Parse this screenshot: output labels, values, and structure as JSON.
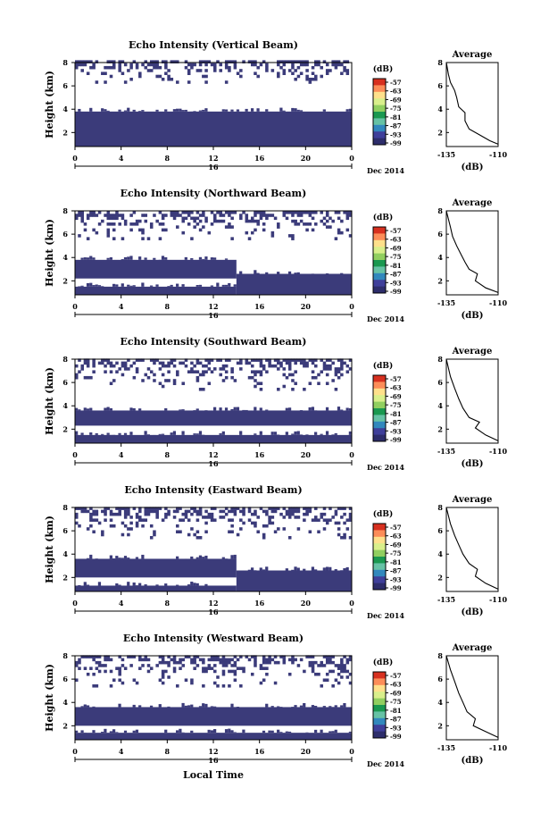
{
  "figure": {
    "xlabel": "Local Time",
    "date_label": "Dec 2014",
    "day_label": "16",
    "colorbar_unit": "(dB)",
    "colorbar_ticks": [
      "-57",
      "-63",
      "-69",
      "-75",
      "-81",
      "-87",
      "-93",
      "-99"
    ],
    "colorbar_colors": [
      "#d7301f",
      "#fc8d59",
      "#fee08b",
      "#d9ef8b",
      "#91cf60",
      "#1a9850",
      "#66c2a5",
      "#3288bd",
      "#3f3f9a",
      "#2d2d6b"
    ],
    "fill_color": "#3b3b7a",
    "panel_titles": [
      "Echo Intensity (Vertical Beam)",
      "Echo Intensity (Northward Beam)",
      "Echo Intensity (Southward Beam)",
      "Echo Intensity (Eastward Beam)",
      "Echo Intensity (Westward Beam)"
    ]
  },
  "chart_data": [
    {
      "type": "heatmap",
      "title": "Echo Intensity (Vertical Beam)",
      "ylabel": "Height (km)",
      "xlabel": "",
      "x_ticks": [
        "0",
        "4",
        "8",
        "12",
        "16",
        "20",
        "0"
      ],
      "y_ticks": [
        "2",
        "4",
        "6",
        "8"
      ],
      "xlim": [
        0,
        24
      ],
      "ylim": [
        0.8,
        8
      ],
      "solid_layers": [
        {
          "x_start": 0,
          "x_end": 24,
          "y_bottom": 0.8,
          "y_top": 3.8
        }
      ],
      "sparse_top": [
        6.2,
        8
      ],
      "profile": {
        "title": "Average",
        "xlabel": "(dB)",
        "x_ticks": [
          "-135",
          "-110"
        ],
        "xlim": [
          -135,
          -110
        ],
        "y_ticks": [
          "2",
          "4",
          "6",
          "8"
        ],
        "ylim": [
          0.8,
          8
        ],
        "points": [
          [
            -110,
            1.0
          ],
          [
            -114,
            1.3
          ],
          [
            -119,
            1.8
          ],
          [
            -124,
            2.3
          ],
          [
            -126,
            3.0
          ],
          [
            -126,
            3.7
          ],
          [
            -129,
            4.2
          ],
          [
            -130,
            5.0
          ],
          [
            -131,
            5.6
          ],
          [
            -133,
            6.3
          ],
          [
            -134,
            7.0
          ],
          [
            -135,
            8.0
          ]
        ]
      }
    },
    {
      "type": "heatmap",
      "title": "Echo Intensity (Northward Beam)",
      "ylabel": "Height (km)",
      "xlabel": "",
      "x_ticks": [
        "0",
        "4",
        "8",
        "12",
        "16",
        "20",
        "0"
      ],
      "y_ticks": [
        "2",
        "4",
        "6",
        "8"
      ],
      "xlim": [
        0,
        24
      ],
      "ylim": [
        0.8,
        8
      ],
      "solid_layers": [
        {
          "x_start": 0,
          "x_end": 14,
          "y_bottom": 2.2,
          "y_top": 3.8
        },
        {
          "x_start": 14,
          "x_end": 24,
          "y_bottom": 0.8,
          "y_top": 2.6
        },
        {
          "x_start": 0,
          "x_end": 14,
          "y_bottom": 0.8,
          "y_top": 1.5
        }
      ],
      "sparse_top": [
        5.5,
        8
      ],
      "profile": {
        "title": "Average",
        "xlabel": "(dB)",
        "x_ticks": [
          "-135",
          "-110"
        ],
        "xlim": [
          -135,
          -110
        ],
        "y_ticks": [
          "2",
          "4",
          "6",
          "8"
        ],
        "ylim": [
          0.8,
          8
        ],
        "points": [
          [
            -110,
            1.0
          ],
          [
            -116,
            1.4
          ],
          [
            -121,
            2.0
          ],
          [
            -120,
            2.6
          ],
          [
            -124,
            3.0
          ],
          [
            -126,
            3.6
          ],
          [
            -128,
            4.3
          ],
          [
            -130,
            5.0
          ],
          [
            -132,
            5.8
          ],
          [
            -133,
            6.6
          ],
          [
            -135,
            8.0
          ]
        ]
      }
    },
    {
      "type": "heatmap",
      "title": "Echo Intensity (Southward Beam)",
      "ylabel": "Height (km)",
      "xlabel": "",
      "x_ticks": [
        "0",
        "4",
        "8",
        "12",
        "16",
        "20",
        "0"
      ],
      "y_ticks": [
        "2",
        "4",
        "6",
        "8"
      ],
      "xlim": [
        0,
        24
      ],
      "ylim": [
        0.8,
        8
      ],
      "solid_layers": [
        {
          "x_start": 0,
          "x_end": 24,
          "y_bottom": 2.3,
          "y_top": 3.6
        },
        {
          "x_start": 0,
          "x_end": 24,
          "y_bottom": 0.8,
          "y_top": 1.5
        }
      ],
      "sparse_top": [
        5.3,
        8
      ],
      "profile": {
        "title": "Average",
        "xlabel": "(dB)",
        "x_ticks": [
          "-135",
          "-110"
        ],
        "xlim": [
          -135,
          -110
        ],
        "y_ticks": [
          "2",
          "4",
          "6",
          "8"
        ],
        "ylim": [
          0.8,
          8
        ],
        "points": [
          [
            -110,
            1.0
          ],
          [
            -116,
            1.5
          ],
          [
            -121,
            2.1
          ],
          [
            -119,
            2.6
          ],
          [
            -124,
            3.0
          ],
          [
            -127,
            3.8
          ],
          [
            -129,
            4.6
          ],
          [
            -131,
            5.5
          ],
          [
            -133,
            6.5
          ],
          [
            -135,
            8.0
          ]
        ]
      }
    },
    {
      "type": "heatmap",
      "title": "Echo Intensity (Eastward Beam)",
      "ylabel": "Height (km)",
      "xlabel": "",
      "x_ticks": [
        "0",
        "4",
        "8",
        "12",
        "16",
        "20",
        "0"
      ],
      "y_ticks": [
        "2",
        "4",
        "6",
        "8"
      ],
      "xlim": [
        0,
        24
      ],
      "ylim": [
        0.8,
        8
      ],
      "solid_layers": [
        {
          "x_start": 0,
          "x_end": 14,
          "y_bottom": 2.0,
          "y_top": 3.6
        },
        {
          "x_start": 14,
          "x_end": 24,
          "y_bottom": 0.8,
          "y_top": 2.6
        },
        {
          "x_start": 0,
          "x_end": 14,
          "y_bottom": 0.8,
          "y_top": 1.3
        }
      ],
      "sparse_top": [
        5.3,
        8
      ],
      "profile": {
        "title": "Average",
        "xlabel": "(dB)",
        "x_ticks": [
          "-135",
          "-110"
        ],
        "xlim": [
          -135,
          -110
        ],
        "y_ticks": [
          "2",
          "4",
          "6",
          "8"
        ],
        "ylim": [
          0.8,
          8
        ],
        "points": [
          [
            -110,
            1.0
          ],
          [
            -116,
            1.5
          ],
          [
            -121,
            2.1
          ],
          [
            -120,
            2.7
          ],
          [
            -124,
            3.2
          ],
          [
            -127,
            4.0
          ],
          [
            -129,
            4.8
          ],
          [
            -131,
            5.6
          ],
          [
            -133,
            6.6
          ],
          [
            -135,
            8.0
          ]
        ]
      }
    },
    {
      "type": "heatmap",
      "title": "Echo Intensity (Westward Beam)",
      "ylabel": "Height (km)",
      "xlabel": "Local Time",
      "x_ticks": [
        "0",
        "4",
        "8",
        "12",
        "16",
        "20",
        "0"
      ],
      "y_ticks": [
        "2",
        "4",
        "6",
        "8"
      ],
      "xlim": [
        0,
        24
      ],
      "ylim": [
        0.8,
        8
      ],
      "solid_layers": [
        {
          "x_start": 0,
          "x_end": 24,
          "y_bottom": 2.0,
          "y_top": 3.6
        },
        {
          "x_start": 0,
          "x_end": 24,
          "y_bottom": 0.8,
          "y_top": 1.4
        }
      ],
      "sparse_top": [
        5.3,
        8
      ],
      "profile": {
        "title": "Average",
        "xlabel": "(dB)",
        "x_ticks": [
          "-135",
          "-110"
        ],
        "xlim": [
          -135,
          -110
        ],
        "y_ticks": [
          "2",
          "4",
          "6",
          "8"
        ],
        "ylim": [
          0.8,
          8
        ],
        "points": [
          [
            -110,
            1.0
          ],
          [
            -116,
            1.5
          ],
          [
            -122,
            2.0
          ],
          [
            -121,
            2.6
          ],
          [
            -125,
            3.2
          ],
          [
            -127,
            4.0
          ],
          [
            -129,
            4.8
          ],
          [
            -131,
            5.8
          ],
          [
            -133,
            6.8
          ],
          [
            -135,
            8.0
          ]
        ]
      }
    }
  ]
}
